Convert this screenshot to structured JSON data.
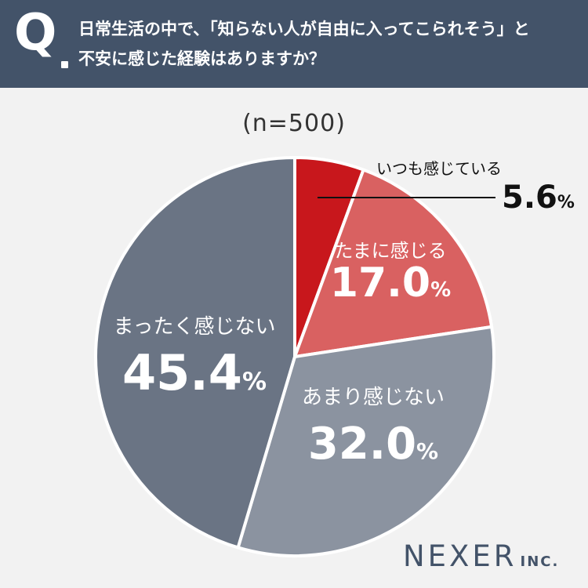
{
  "question": {
    "mark": "Q",
    "line1": "日常生活の中で、「知らない人が自由に入ってこられそう」と",
    "line2": "不安に感じた経験はありますか？"
  },
  "sample_size": "(n=500)",
  "logo": {
    "main": "NEXER",
    "sub": "INC."
  },
  "chart_data": {
    "type": "pie",
    "start": "12 o'clock",
    "direction": "clockwise",
    "slices": [
      {
        "label": "いつも感じている",
        "value": 5.6,
        "display": "5.6",
        "unit": "%",
        "color": "#c8171c"
      },
      {
        "label": "たまに感じる",
        "value": 17.0,
        "display": "17.0",
        "unit": "%",
        "color": "#d96161"
      },
      {
        "label": "あまり感じない",
        "value": 32.0,
        "display": "32.0",
        "unit": "%",
        "color": "#8b93a0"
      },
      {
        "label": "まったく感じない",
        "value": 45.4,
        "display": "45.4",
        "unit": "%",
        "color": "#6a7484"
      }
    ]
  }
}
